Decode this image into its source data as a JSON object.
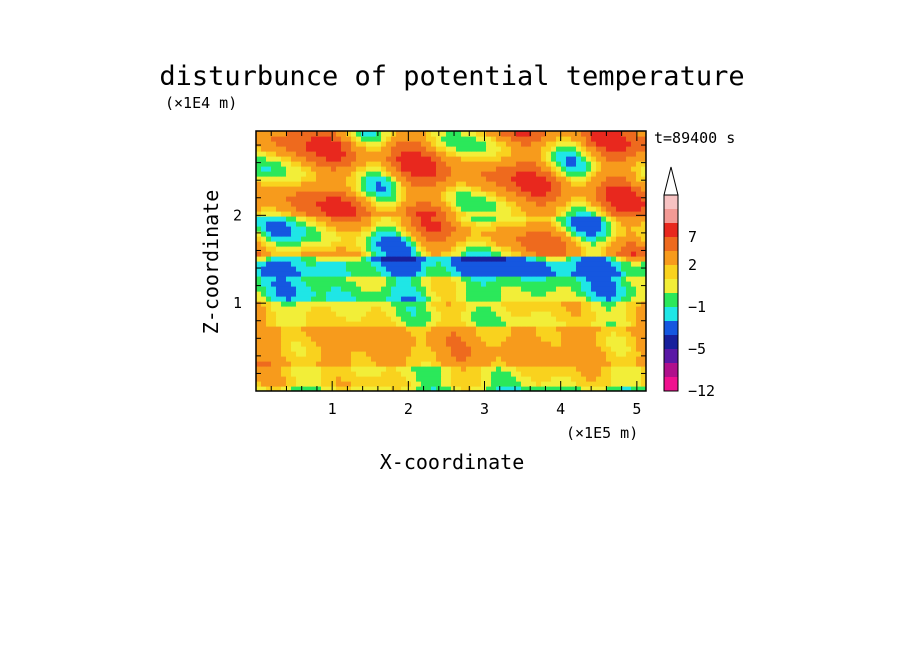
{
  "chart_data": {
    "type": "heatmap",
    "title": "disturbunce of potential temperature",
    "time_label": "t=89400 s",
    "xlabel": "X-coordinate",
    "ylabel": "Z-coordinate",
    "x_unit": "(×1E5 m)",
    "y_unit": "(×1E4 m)",
    "xlim": [
      0,
      5.12
    ],
    "ylim": [
      0,
      2.96
    ],
    "x_ticks": [
      "1",
      "2",
      "3",
      "4",
      "5"
    ],
    "x_tick_values": [
      1,
      2,
      3,
      4,
      5
    ],
    "y_ticks": [
      "1",
      "2"
    ],
    "y_tick_values": [
      1,
      2
    ],
    "colorbar": {
      "levels_top_to_bottom": [
        {
          "color": "#f7c2c2"
        },
        {
          "color": "#f39a95"
        },
        {
          "color": "#e8281e",
          "label": "7"
        },
        {
          "color": "#ee6a1e"
        },
        {
          "color": "#f79b1c",
          "label": "2"
        },
        {
          "color": "#f9d21e"
        },
        {
          "color": "#f2ee38"
        },
        {
          "color": "#2be85a",
          "label": "−1"
        },
        {
          "color": "#1fe6e6"
        },
        {
          "color": "#1557e0"
        },
        {
          "color": "#18209c",
          "label": "−5"
        },
        {
          "color": "#5a18a5"
        },
        {
          "color": "#b0108c"
        },
        {
          "color": "#f0118f"
        }
      ],
      "bottom_label": "−12",
      "extend_arrow_color": "#ffffff"
    },
    "field": {
      "description_free": true,
      "bands": [
        {
          "z_range": [
            0.0,
            0.08
          ],
          "value": 0
        },
        {
          "z_range": [
            0.08,
            0.3
          ],
          "value": 1
        },
        {
          "z_range": [
            0.3,
            0.75
          ],
          "value": 2.5
        },
        {
          "z_range": [
            0.75,
            1.0
          ],
          "value": 0.8
        },
        {
          "z_range": [
            1.0,
            1.3
          ],
          "value": -0.5
        },
        {
          "z_range": [
            1.3,
            1.55
          ],
          "value": -2
        },
        {
          "z_range": [
            1.55,
            2.0
          ],
          "value": 1.5
        },
        {
          "z_range": [
            2.0,
            2.96
          ],
          "value": 3
        }
      ]
    }
  },
  "colors": {
    "background": "#ffffff",
    "axis": "#000000"
  }
}
